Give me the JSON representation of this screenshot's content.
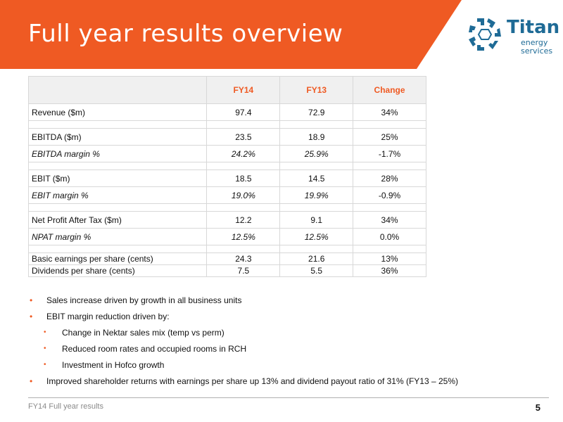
{
  "header": {
    "title": "Full year results overview",
    "accent_color": "#ef5a23"
  },
  "logo": {
    "name": "Titan",
    "line1": "energy",
    "line2": "services",
    "color": "#1f6b96"
  },
  "table": {
    "headers": [
      "",
      "FY14",
      "FY13",
      "Change"
    ],
    "rows": [
      {
        "label": "Revenue ($m)",
        "fy14": "97.4",
        "fy13": "72.9",
        "change": "34%"
      },
      {
        "label": "EBITDA ($m)",
        "fy14": "23.5",
        "fy13": "18.9",
        "change": "25%"
      },
      {
        "label": "EBITDA margin %",
        "fy14": "24.2%",
        "fy13": "25.9%",
        "change": "-1.7%"
      },
      {
        "label": "EBIT ($m)",
        "fy14": "18.5",
        "fy13": "14.5",
        "change": "28%"
      },
      {
        "label": "EBIT margin %",
        "fy14": "19.0%",
        "fy13": "19.9%",
        "change": "-0.9%"
      },
      {
        "label": "Net Profit After Tax ($m)",
        "fy14": "12.2",
        "fy13": "9.1",
        "change": "34%"
      },
      {
        "label": "NPAT margin %",
        "fy14": "12.5%",
        "fy13": "12.5%",
        "change": "0.0%"
      },
      {
        "label": "Basic earnings per share (cents)",
        "fy14": "24.3",
        "fy13": "21.6",
        "change": "13%"
      },
      {
        "label": "Dividends per share (cents)",
        "fy14": "7.5",
        "fy13": "5.5",
        "change": "36%"
      }
    ]
  },
  "bullets": [
    "Sales increase driven by growth in all business units",
    "EBIT margin reduction driven by:",
    "Change in Nektar sales mix (temp vs perm)",
    "Reduced room rates and occupied rooms in RCH",
    "Investment in Hofco growth",
    "Improved shareholder returns with earnings per share up 13% and dividend payout ratio of 31% (FY13 – 25%)"
  ],
  "footer": {
    "text": "FY14 Full year results",
    "page": "5"
  }
}
